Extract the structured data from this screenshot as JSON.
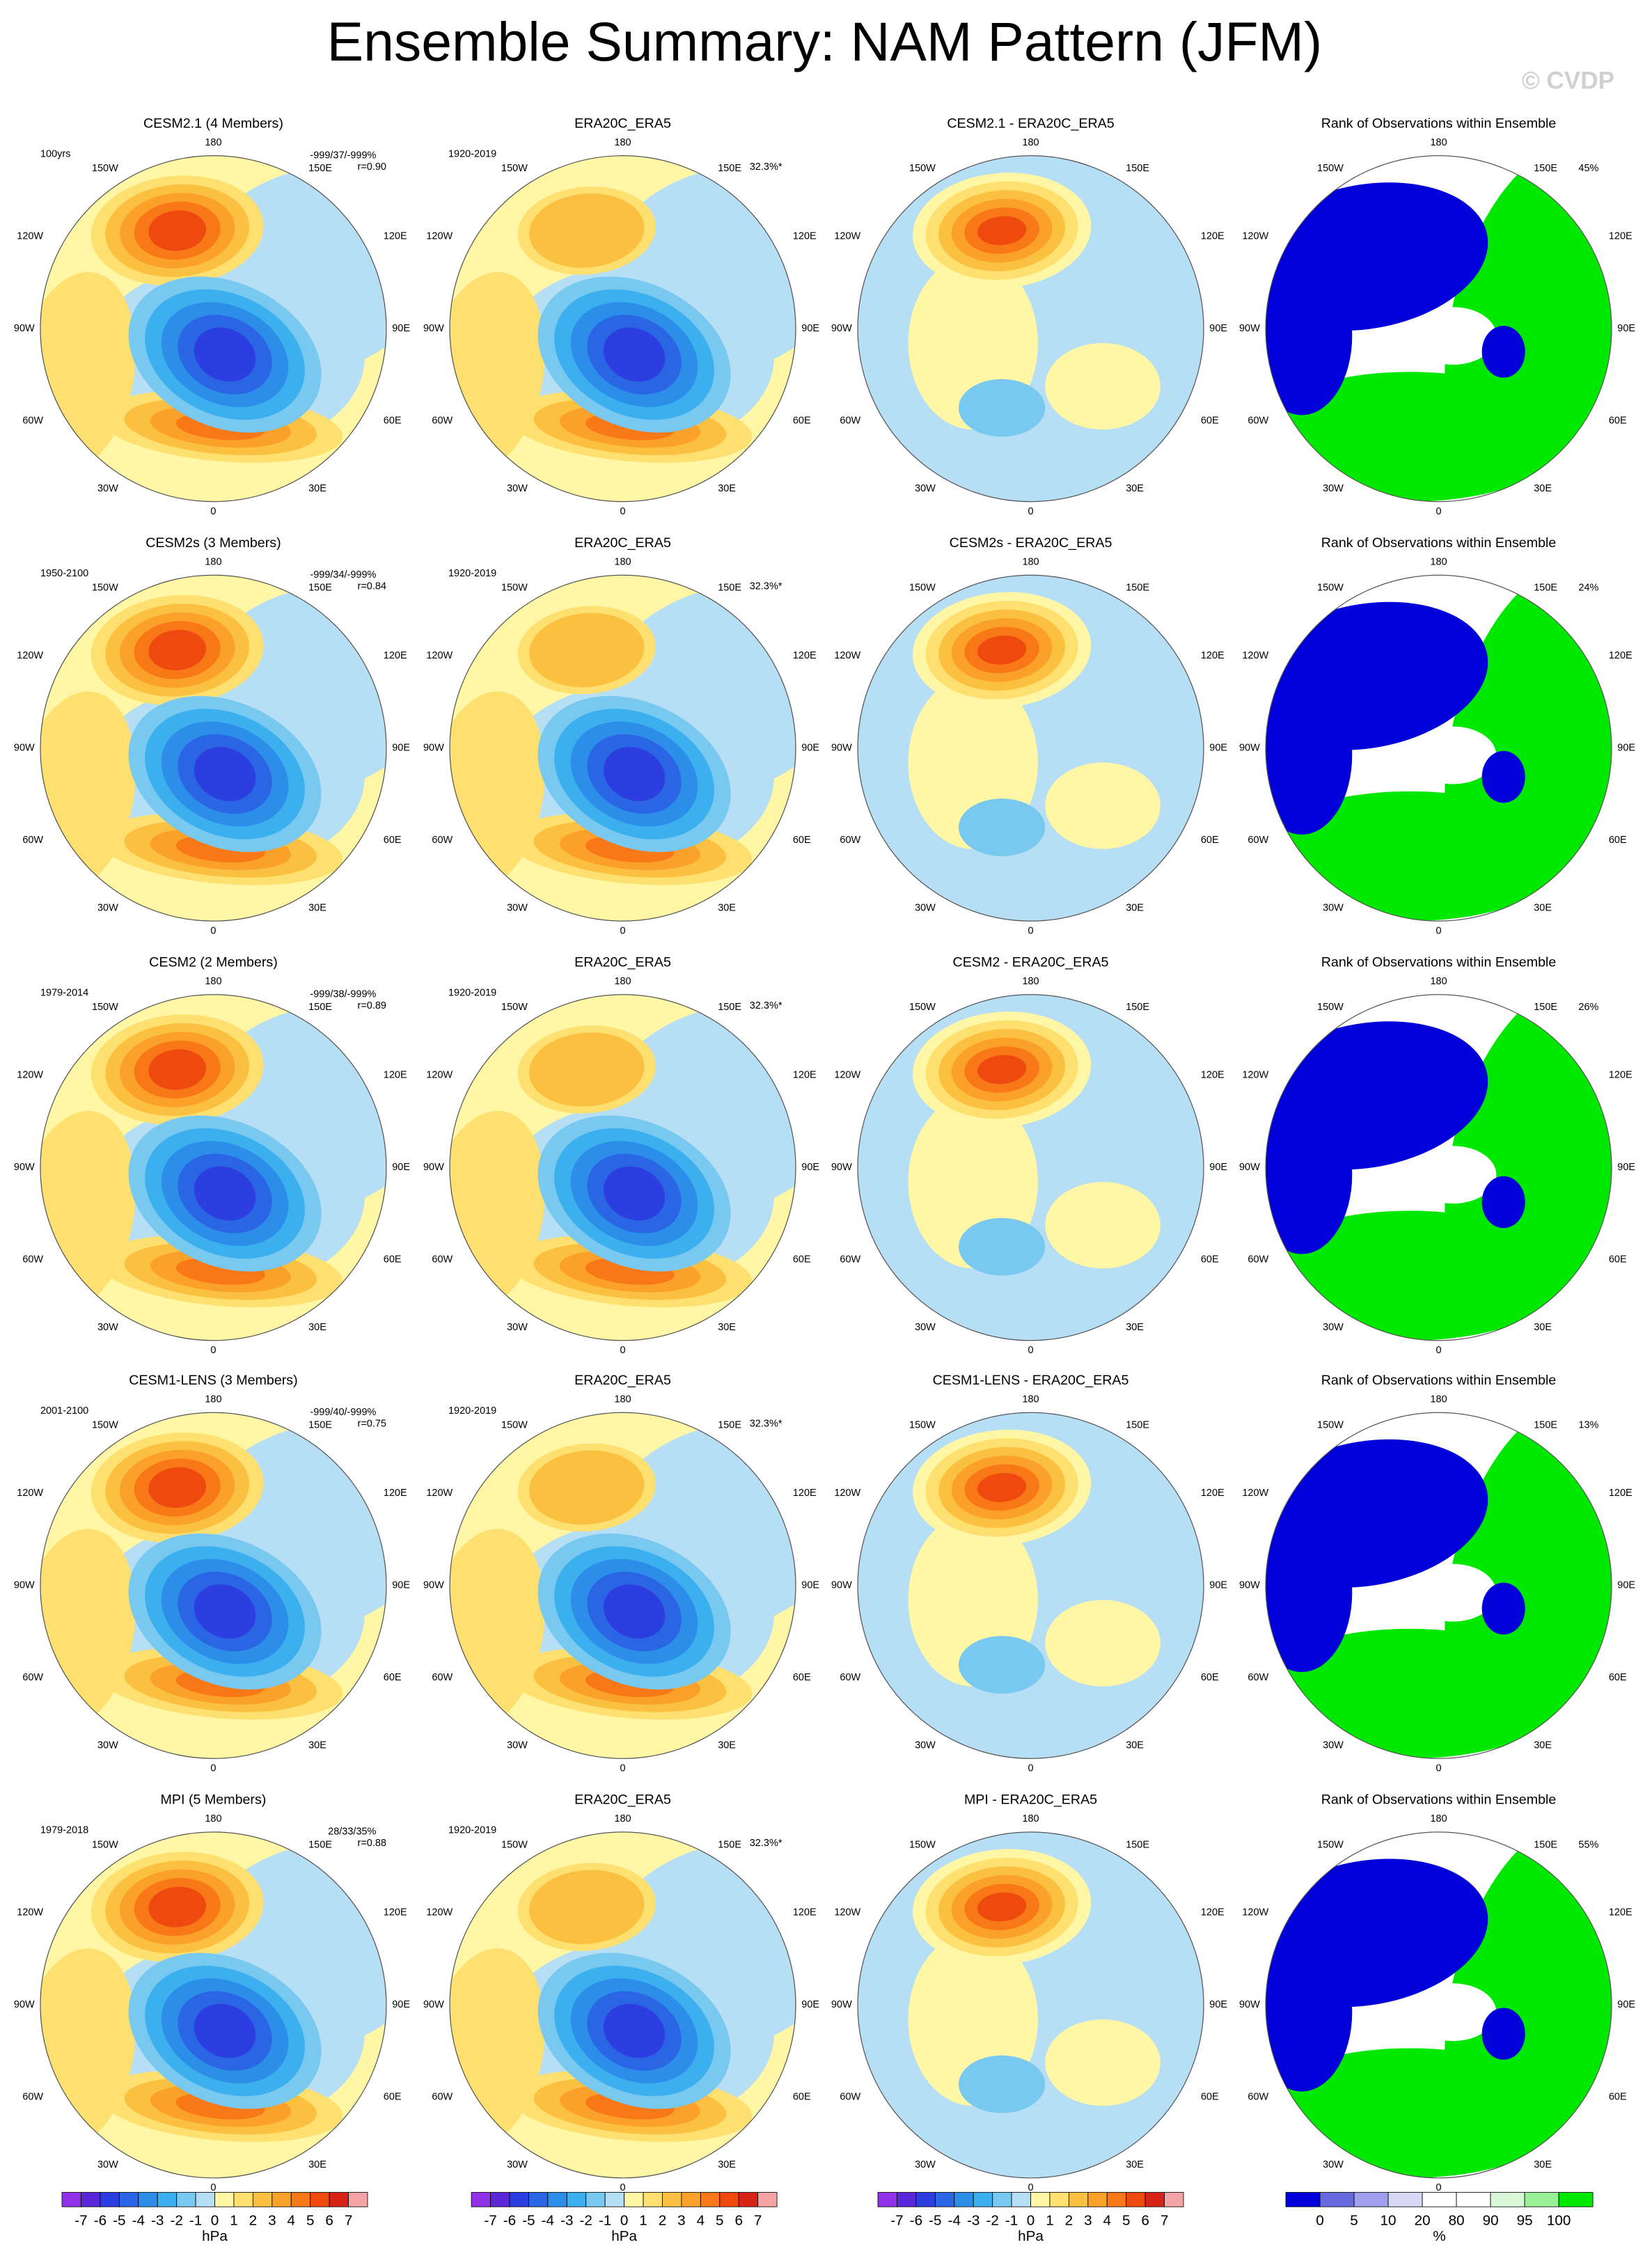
{
  "title": "Ensemble Summary: NAM Pattern (JFM)",
  "watermark": "© CVDP",
  "map_labels": [
    "180",
    "150W",
    "150E",
    "120W",
    "120E",
    "90W",
    "90E",
    "60W",
    "60E",
    "30W",
    "30E",
    "0"
  ],
  "rows": [
    {
      "model": "CESM2.1 (4 Members)",
      "model_color": "#2a7592",
      "period": "100yrs",
      "stats": "-999/37/-999%",
      "r": "r=0.90",
      "obs_title": "ERA20C_ERA5",
      "obs_period": "1920-2019",
      "obs_pct": "32.3%*",
      "diff_title": "CESM2.1 - ERA20C_ERA5",
      "rank_title": "Rank of Observations within Ensemble",
      "rank_pct": "45%"
    },
    {
      "model": "CESM2s (3 Members)",
      "model_color": "#5a8a6a",
      "period": "1950-2100",
      "stats": "-999/34/-999%",
      "r": "r=0.84",
      "obs_title": "ERA20C_ERA5",
      "obs_period": "1920-2019",
      "obs_pct": "32.3%*",
      "diff_title": "CESM2s - ERA20C_ERA5",
      "rank_title": "Rank of Observations within Ensemble",
      "rank_pct": "24%"
    },
    {
      "model": "CESM2 (2 Members)",
      "model_color": "#d8c872",
      "period": "1979-2014",
      "stats": "-999/38/-999%",
      "r": "r=0.89",
      "obs_title": "ERA20C_ERA5",
      "obs_period": "1920-2019",
      "obs_pct": "32.3%*",
      "diff_title": "CESM2 - ERA20C_ERA5",
      "rank_title": "Rank of Observations within Ensemble",
      "rank_pct": "26%"
    },
    {
      "model": "CESM1-LENS (3 Members)",
      "model_color": "#a04512",
      "period": "2001-2100",
      "stats": "-999/40/-999%",
      "r": "r=0.75",
      "obs_title": "ERA20C_ERA5",
      "obs_period": "1920-2019",
      "obs_pct": "32.3%*",
      "diff_title": "CESM1-LENS - ERA20C_ERA5",
      "rank_title": "Rank of Observations within Ensemble",
      "rank_pct": "13%"
    },
    {
      "model": "MPI (5 Members)",
      "model_color": "#8060c8",
      "period": "1979-2018",
      "stats": "28/33/35%",
      "r": "r=0.88",
      "obs_title": "ERA20C_ERA5",
      "obs_period": "1920-2019",
      "obs_pct": "32.3%*",
      "diff_title": "MPI - ERA20C_ERA5",
      "rank_title": "Rank of Observations within Ensemble",
      "rank_pct": "55%"
    }
  ],
  "colorbar_hpa": {
    "labels": [
      "-7",
      "-6",
      "-5",
      "-4",
      "-3",
      "-2",
      "-1",
      "0",
      "1",
      "2",
      "3",
      "4",
      "5",
      "6",
      "7"
    ],
    "colors": [
      "#9030e8",
      "#5a28d8",
      "#2c3ee0",
      "#2a66e4",
      "#2c8ee8",
      "#3cb0ee",
      "#78c8f0",
      "#b6def4",
      "#fff7a6",
      "#fde070",
      "#fcc040",
      "#fba028",
      "#f87818",
      "#ee4a10",
      "#d82418",
      "#f4a4a4"
    ],
    "unit": "hPa"
  },
  "colorbar_rank": {
    "labels": [
      "0",
      "5",
      "10",
      "20",
      "80",
      "90",
      "95",
      "100"
    ],
    "colors": [
      "#0000d8",
      "#6a6ae0",
      "#a0a0ec",
      "#d8d8f4",
      "#ffffff",
      "#ffffff",
      "#d8f8d8",
      "#98f098",
      "#00e800"
    ],
    "unit": "%"
  }
}
